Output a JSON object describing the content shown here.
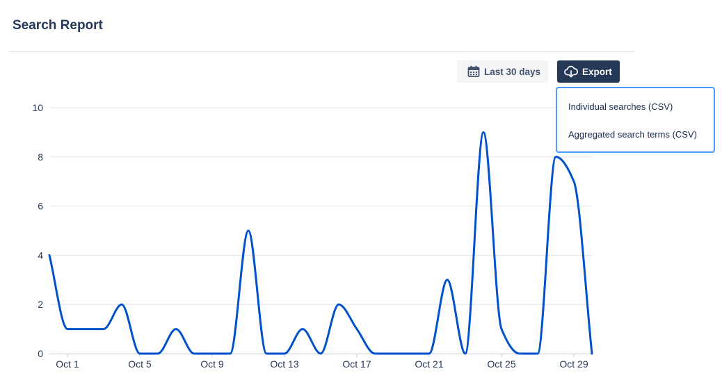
{
  "header": {
    "title": "Search Report"
  },
  "toolbar": {
    "range_label": "Last 30 days",
    "range_icon": "calendar-icon",
    "export_label": "Export",
    "export_icon": "cloud-download-icon",
    "export_bg": "#253858"
  },
  "export_menu": {
    "items": [
      {
        "label": "Individual searches (CSV)"
      },
      {
        "label": "Aggregated search terms (CSV)"
      }
    ],
    "border_color": "#4c9aff"
  },
  "chart_data": {
    "type": "line",
    "title": "",
    "xlabel": "",
    "ylabel": "",
    "x": [
      "Sep 30",
      "Oct 1",
      "Oct 2",
      "Oct 3",
      "Oct 4",
      "Oct 5",
      "Oct 6",
      "Oct 7",
      "Oct 8",
      "Oct 9",
      "Oct 10",
      "Oct 11",
      "Oct 12",
      "Oct 13",
      "Oct 14",
      "Oct 15",
      "Oct 16",
      "Oct 17",
      "Oct 18",
      "Oct 19",
      "Oct 20",
      "Oct 21",
      "Oct 22",
      "Oct 23",
      "Oct 24",
      "Oct 25",
      "Oct 26",
      "Oct 27",
      "Oct 28",
      "Oct 29",
      "Oct 30"
    ],
    "series": [
      {
        "values": [
          4,
          1,
          1,
          1,
          2,
          0,
          0,
          1,
          0,
          0,
          0,
          5,
          0,
          0,
          1,
          0,
          2,
          1,
          0,
          0,
          0,
          0,
          3,
          0,
          9,
          1,
          0,
          0,
          8,
          7,
          0
        ],
        "color": "#0052cc"
      }
    ],
    "x_tick_labels": [
      "Oct 1",
      "Oct 5",
      "Oct 9",
      "Oct 13",
      "Oct 17",
      "Oct 21",
      "Oct 25",
      "Oct 29"
    ],
    "y_ticks": [
      0,
      2,
      4,
      6,
      8,
      10
    ],
    "ylim": [
      0,
      10
    ],
    "grid": true,
    "legend": "none"
  }
}
